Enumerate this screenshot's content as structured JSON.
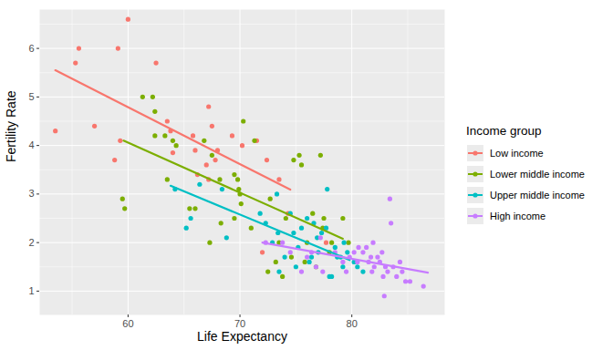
{
  "chart_data": {
    "type": "scatter",
    "x_label": "Life Expectancy",
    "y_label": "Fertility Rate",
    "legend_title": "Income group",
    "xlim": [
      52.1,
      88.3
    ],
    "ylim": [
      0.51,
      6.8
    ],
    "xticks": [
      60,
      70,
      80
    ],
    "yticks": [
      1,
      2,
      3,
      4,
      5,
      6
    ],
    "grid": true,
    "legend": "right",
    "marker": "circle",
    "series": [
      {
        "name": "Low income",
        "color": "#F8766D",
        "x": [
          53.5,
          55.3,
          55.6,
          57,
          58.8,
          59.1,
          59.3,
          60,
          62.5,
          63.5,
          63.8,
          64,
          65.8,
          66,
          66.2,
          67.2,
          67.5,
          67.8,
          68,
          67,
          67.2,
          69.3,
          70.2,
          71.5,
          72.4,
          73.5,
          74.3,
          72,
          77.7
        ],
        "values": [
          4.3,
          5.7,
          6.0,
          4.4,
          3.7,
          6.0,
          4.1,
          6.6,
          5.7,
          4.5,
          4.3,
          3.85,
          4.2,
          3.9,
          3.4,
          4.8,
          4.4,
          3.7,
          3.9,
          3.6,
          3.3,
          4.2,
          4.0,
          4.1,
          3.7,
          3.3,
          2.6,
          1.8,
          2.0
        ],
        "fit_x": [
          53.5,
          74.5
        ],
        "fit_values": [
          5.55,
          3.09
        ]
      },
      {
        "name": "Lower middle income",
        "color": "#7CAE00",
        "x": [
          59.5,
          59.7,
          61.3,
          62.2,
          62.4,
          62.4,
          63.3,
          63.5,
          64,
          64.3,
          65.5,
          66,
          66.8,
          67.5,
          67.3,
          68.2,
          68.3,
          69.5,
          69.8,
          69.9,
          70,
          70.1,
          70.3,
          69.5,
          71,
          71.3,
          72.7,
          72.5,
          73.5,
          73.8,
          74.1,
          74.8,
          75.3,
          75.5,
          76,
          76.5,
          75.8,
          77.4,
          77.2,
          77.5,
          78,
          78.2,
          76.8,
          79.2,
          79.7,
          74.6,
          73.2
        ],
        "values": [
          2.9,
          2.7,
          5.0,
          5.0,
          4.7,
          4.2,
          4.2,
          3.3,
          4.1,
          4.0,
          2.7,
          2.7,
          4.1,
          3.8,
          2.0,
          3.3,
          2.4,
          3.4,
          3.3,
          3.1,
          3.0,
          2.8,
          4.5,
          2.5,
          2.3,
          4.1,
          2.9,
          1.4,
          2.0,
          1.3,
          2.5,
          3.7,
          3.8,
          3.6,
          2.0,
          2.6,
          1.6,
          2.3,
          3.8,
          2.5,
          1.8,
          2.0,
          1.5,
          2.5,
          2.0,
          1.7,
          1.6
        ],
        "fit_x": [
          59.6,
          79.2
        ],
        "fit_values": [
          4.1,
          2.08
        ]
      },
      {
        "name": "Upper middle income",
        "color": "#00BFC4",
        "x": [
          64.2,
          65.2,
          65.6,
          66.4,
          68.4,
          68.8,
          71.8,
          72.3,
          73.4,
          73.3,
          74,
          74.5,
          74.8,
          75.2,
          75,
          75.5,
          76,
          76.2,
          76.6,
          76.9,
          77.3,
          77.7,
          77.8,
          78,
          78.2,
          78.5,
          78.7,
          79,
          79.2,
          79.3,
          79.6,
          80.2,
          80.5,
          81,
          77,
          73.5,
          76.4,
          72.9
        ],
        "values": [
          3.1,
          2.3,
          2.5,
          3.2,
          3.1,
          2.1,
          2.6,
          2.4,
          2.2,
          3.0,
          1.7,
          2.6,
          2.2,
          1.9,
          1.5,
          2.3,
          2.5,
          1.6,
          2.4,
          2.1,
          2.2,
          2.3,
          3.1,
          1.3,
          1.3,
          1.9,
          1.7,
          1.7,
          1.5,
          2.0,
          1.8,
          1.6,
          1.5,
          1.4,
          1.8,
          1.4,
          1.7,
          2.0
        ],
        "fit_x": [
          63.8,
          79.8
        ],
        "fit_values": [
          3.17,
          1.64
        ]
      },
      {
        "name": "High income",
        "color": "#C77CFF",
        "x": [
          72.3,
          73.8,
          74.5,
          76,
          76.4,
          77.2,
          77.4,
          78.5,
          79.2,
          79.5,
          80.2,
          80.6,
          81,
          81.3,
          81.5,
          81.7,
          81.8,
          82.0,
          82.3,
          82.5,
          82.7,
          82.8,
          83,
          83.2,
          83.4,
          83.5,
          83.7,
          84,
          84.3,
          84.5,
          85.2,
          82.9,
          86.4,
          80.5,
          81.9,
          84.8,
          79.8,
          75.5,
          76.8
        ],
        "values": [
          2.0,
          2.0,
          1.8,
          1.7,
          1.8,
          2.1,
          1.4,
          1.8,
          1.6,
          1.4,
          1.8,
          1.9,
          1.8,
          1.9,
          1.6,
          1.7,
          1.4,
          1.5,
          1.7,
          1.6,
          1.8,
          1.3,
          1.5,
          1.4,
          2.9,
          2.4,
          1.5,
          1.3,
          1.6,
          1.4,
          1.2,
          0.9,
          1.1,
          1.6,
          2.0,
          1.2,
          1.7,
          1.4,
          1.5
        ],
        "fit_x": [
          72.0,
          86.8
        ],
        "fit_values": [
          2.0,
          1.38
        ]
      }
    ]
  }
}
